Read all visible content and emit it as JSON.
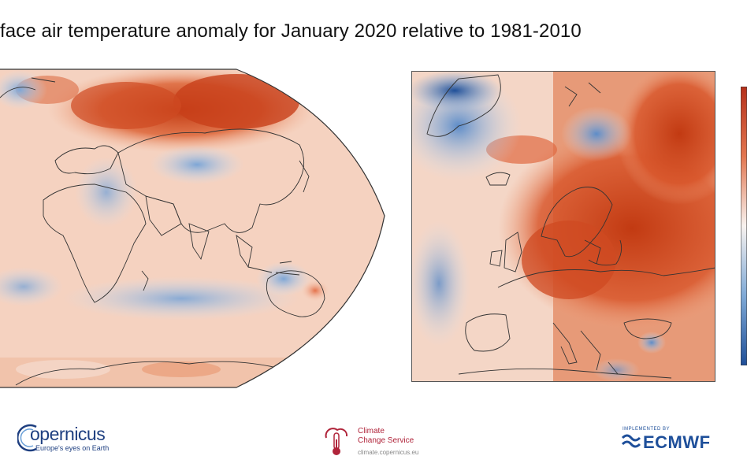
{
  "title": "face air temperature anomaly for January 2020 relative to 1981-2010",
  "colors": {
    "warm_strong": "#c8401a",
    "warm_mid": "#e8866a",
    "warm_light": "#f6cdb8",
    "neutral": "#f4ece8",
    "cool_light": "#cfe0f2",
    "cool_mid": "#8fb4de",
    "cool_strong": "#2a5fa8",
    "coast": "#333333"
  },
  "maps": {
    "global": "global-anomaly-map",
    "europe": "europe-anomaly-map"
  },
  "logos": {
    "copernicus_name": "opernicus",
    "copernicus_tagline": "Europe's eyes on Earth",
    "c3s_line1": "Climate",
    "c3s_line2": "Change Service",
    "c3s_url": "climate.copernicus.eu",
    "ecmwf_implemented": "IMPLEMENTED BY",
    "ecmwf_name": "ECMWF"
  }
}
